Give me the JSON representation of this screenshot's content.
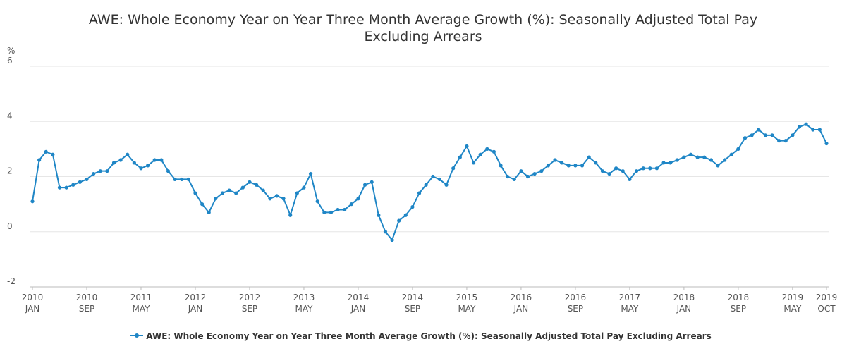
{
  "chart_data": {
    "type": "line",
    "title": "AWE: Whole Economy Year on Year Three Month Average Growth (%): Seasonally Adjusted Total Pay Excluding Arrears",
    "y_label": "%",
    "categories": [
      [
        "2010",
        "JAN"
      ],
      null,
      null,
      null,
      null,
      null,
      null,
      null,
      [
        "2010",
        "SEP"
      ],
      null,
      null,
      null,
      null,
      null,
      null,
      null,
      [
        "2011",
        "MAY"
      ],
      null,
      null,
      null,
      null,
      null,
      null,
      null,
      [
        "2012",
        "JAN"
      ],
      null,
      null,
      null,
      null,
      null,
      null,
      null,
      [
        "2012",
        "SEP"
      ],
      null,
      null,
      null,
      null,
      null,
      null,
      null,
      [
        "2013",
        "MAY"
      ],
      null,
      null,
      null,
      null,
      null,
      null,
      null,
      [
        "2014",
        "JAN"
      ],
      null,
      null,
      null,
      null,
      null,
      null,
      null,
      [
        "2014",
        "SEP"
      ],
      null,
      null,
      null,
      null,
      null,
      null,
      null,
      [
        "2015",
        "MAY"
      ],
      null,
      null,
      null,
      null,
      null,
      null,
      null,
      [
        "2016",
        "JAN"
      ],
      null,
      null,
      null,
      null,
      null,
      null,
      null,
      [
        "2016",
        "SEP"
      ],
      null,
      null,
      null,
      null,
      null,
      null,
      null,
      [
        "2017",
        "MAY"
      ],
      null,
      null,
      null,
      null,
      null,
      null,
      null,
      [
        "2018",
        "JAN"
      ],
      null,
      null,
      null,
      null,
      null,
      null,
      null,
      [
        "2018",
        "SEP"
      ],
      null,
      null,
      null,
      null,
      null,
      null,
      null,
      [
        "2019",
        "MAY"
      ],
      null,
      null,
      null,
      null,
      [
        "2019",
        "OCT"
      ]
    ],
    "series": [
      {
        "name": "AWE: Whole Economy Year on Year Three Month Average Growth (%): Seasonally Adjusted Total Pay Excluding Arrears",
        "color": "#1f86c6",
        "values": [
          1.1,
          2.6,
          2.9,
          2.8,
          1.6,
          1.6,
          1.7,
          1.8,
          1.9,
          2.1,
          2.2,
          2.2,
          2.5,
          2.6,
          2.8,
          2.5,
          2.3,
          2.4,
          2.6,
          2.6,
          2.2,
          1.9,
          1.9,
          1.9,
          1.4,
          1.0,
          0.7,
          1.2,
          1.4,
          1.5,
          1.4,
          1.6,
          1.8,
          1.7,
          1.5,
          1.2,
          1.3,
          1.2,
          0.6,
          1.4,
          1.6,
          2.1,
          1.1,
          0.7,
          0.7,
          0.8,
          0.8,
          1.0,
          1.2,
          1.7,
          1.8,
          0.6,
          0.0,
          -0.3,
          0.4,
          0.6,
          0.9,
          1.4,
          1.7,
          2.0,
          1.9,
          1.7,
          2.3,
          2.7,
          3.1,
          2.5,
          2.8,
          3.0,
          2.9,
          2.4,
          2.0,
          1.9,
          2.2,
          2.0,
          2.1,
          2.2,
          2.4,
          2.6,
          2.5,
          2.4,
          2.4,
          2.4,
          2.7,
          2.5,
          2.2,
          2.1,
          2.3,
          2.2,
          1.9,
          2.2,
          2.3,
          2.3,
          2.3,
          2.5,
          2.5,
          2.6,
          2.7,
          2.8,
          2.7,
          2.7,
          2.6,
          2.4,
          2.6,
          2.8,
          3.0,
          3.4,
          3.5,
          3.7,
          3.5,
          3.5,
          3.3,
          3.3,
          3.5,
          3.8,
          3.9,
          3.7,
          3.7,
          3.2
        ]
      }
    ],
    "ylim": [
      -2,
      6
    ],
    "yticks": [
      -2,
      0,
      2,
      4,
      6
    ],
    "grid": true,
    "legend": "bottom"
  }
}
